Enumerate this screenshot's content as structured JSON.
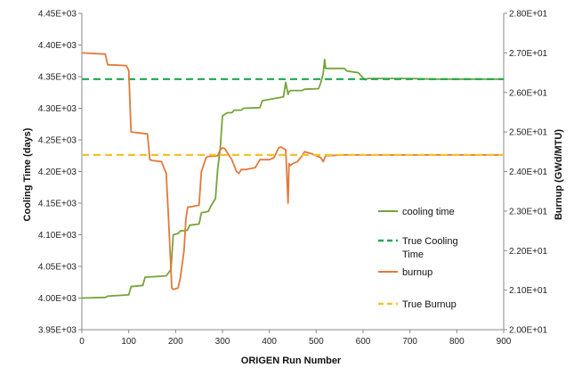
{
  "chart_data": {
    "type": "line",
    "xlabel": "ORIGEN Run Number",
    "ylabel_left": "Cooling Time (days)",
    "ylabel_right": "Burnup (GWd/MTU)",
    "xlim": [
      0,
      900
    ],
    "x_ticks": [
      "0",
      "100",
      "200",
      "300",
      "400",
      "500",
      "600",
      "700",
      "800",
      "900"
    ],
    "ylim_left": [
      3950,
      4450
    ],
    "y_left_ticks": [
      "3.95E+03",
      "4.00E+03",
      "4.05E+03",
      "4.10E+03",
      "4.15E+03",
      "4.20E+03",
      "4.25E+03",
      "4.30E+03",
      "4.35E+03",
      "4.40E+03",
      "4.45E+03"
    ],
    "ylim_right": [
      20,
      28
    ],
    "y_right_ticks": [
      "2.00E+01",
      "2.10E+01",
      "2.20E+01",
      "2.30E+01",
      "2.40E+01",
      "2.50E+01",
      "2.60E+01",
      "2.70E+01",
      "2.80E+01"
    ],
    "grid": false,
    "legend_position": "right-inside",
    "series": [
      {
        "name": "cooling time",
        "axis": "left",
        "style": "solid",
        "color": "#77a33a",
        "x": [
          0,
          50,
          55,
          100,
          105,
          130,
          135,
          180,
          185,
          190,
          195,
          205,
          210,
          225,
          230,
          250,
          255,
          270,
          275,
          285,
          290,
          295,
          300,
          310,
          320,
          325,
          340,
          345,
          380,
          385,
          430,
          435,
          440,
          442,
          445,
          470,
          475,
          505,
          510,
          515,
          518,
          520,
          560,
          565,
          590,
          600,
          605,
          610,
          650,
          700,
          750,
          800,
          850,
          900
        ],
        "y": [
          4000,
          4001,
          4003,
          4005,
          4018,
          4020,
          4033,
          4035,
          4040,
          4045,
          4100,
          4102,
          4106,
          4107,
          4115,
          4117,
          4135,
          4137,
          4145,
          4157,
          4205,
          4235,
          4288,
          4293,
          4293,
          4297,
          4297,
          4300,
          4301,
          4312,
          4318,
          4341,
          4322,
          4326,
          4328,
          4328,
          4330,
          4331,
          4341,
          4355,
          4377,
          4363,
          4363,
          4359,
          4356,
          4348,
          4345,
          4347,
          4347,
          4347,
          4346,
          4346,
          4346,
          4346
        ]
      },
      {
        "name": "True Cooling Time",
        "axis": "left",
        "style": "dashed",
        "color": "#1fa84f",
        "x": [
          0,
          900
        ],
        "y": [
          4346,
          4346
        ]
      },
      {
        "name": "burnup",
        "axis": "right",
        "style": "solid",
        "color": "#e2793a",
        "x": [
          0,
          50,
          55,
          95,
          100,
          105,
          140,
          145,
          150,
          170,
          180,
          185,
          192,
          195,
          205,
          210,
          218,
          222,
          226,
          230,
          250,
          255,
          265,
          270,
          290,
          295,
          300,
          305,
          320,
          330,
          335,
          340,
          350,
          370,
          380,
          400,
          410,
          420,
          425,
          435,
          440,
          442,
          445,
          450,
          460,
          470,
          475,
          490,
          500,
          510,
          515,
          520,
          560,
          600,
          650,
          700,
          750,
          800,
          850,
          900
        ],
        "y": [
          27.0,
          26.97,
          26.7,
          26.68,
          26.55,
          25.0,
          24.95,
          24.3,
          24.28,
          24.25,
          23.95,
          22.8,
          21.05,
          21.02,
          21.05,
          21.3,
          22.0,
          22.8,
          23.1,
          23.1,
          23.15,
          24.0,
          24.35,
          24.38,
          24.4,
          24.55,
          24.6,
          24.58,
          24.3,
          24.0,
          23.95,
          24.05,
          24.05,
          24.1,
          24.3,
          24.3,
          24.35,
          24.6,
          24.62,
          24.55,
          23.2,
          24.2,
          24.15,
          24.2,
          24.25,
          24.4,
          24.5,
          24.45,
          24.4,
          24.35,
          24.25,
          24.4,
          24.42,
          24.42,
          24.42,
          24.42,
          24.42,
          24.42,
          24.42,
          24.42
        ]
      },
      {
        "name": "True Burnup",
        "axis": "right",
        "style": "dashed",
        "color": "#f4c12a",
        "x": [
          0,
          900
        ],
        "y": [
          24.42,
          24.42
        ]
      }
    ],
    "legend": [
      {
        "label_lines": [
          "cooling time"
        ],
        "color": "#77a33a",
        "style": "solid"
      },
      {
        "label_lines": [
          "True Cooling",
          "Time"
        ],
        "color": "#1fa84f",
        "style": "dashed"
      },
      {
        "label_lines": [
          "burnup"
        ],
        "color": "#e2793a",
        "style": "solid"
      },
      {
        "label_lines": [
          "True Burnup"
        ],
        "color": "#f4c12a",
        "style": "dashed"
      }
    ]
  }
}
